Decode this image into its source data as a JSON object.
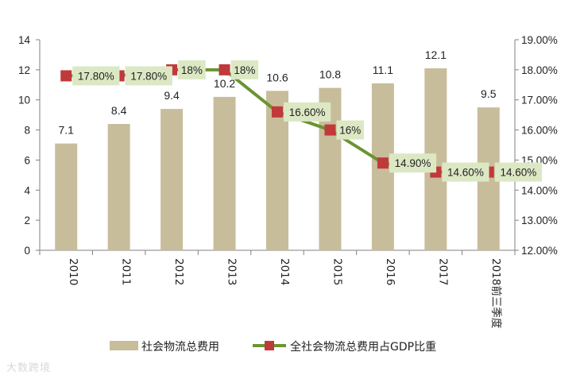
{
  "chart_data": {
    "type": "bar",
    "categories": [
      "2010",
      "2011",
      "2012",
      "2013",
      "2014",
      "2015",
      "2016",
      "2017",
      "2018前三季度"
    ],
    "series": [
      {
        "name": "社会物流总费用",
        "type": "bar",
        "axis": "left",
        "color": "#c8bd9b",
        "values": [
          7.1,
          8.4,
          9.4,
          10.2,
          10.6,
          10.8,
          11.1,
          12.1,
          9.5
        ],
        "labels": [
          "7.1",
          "8.4",
          "9.4",
          "10.2",
          "10.6",
          "10.8",
          "11.1",
          "12.1",
          "9.5"
        ]
      },
      {
        "name": "全社会物流总费用占GDP比重",
        "type": "line",
        "axis": "right",
        "line_color": "#6b9432",
        "marker_color": "#c0393b",
        "values": [
          17.8,
          17.8,
          18,
          18,
          16.6,
          16,
          14.9,
          14.6,
          14.6
        ],
        "labels": [
          "17.80%",
          "17.80%",
          "18%",
          "18%",
          "16.60%",
          "16%",
          "14.90%",
          "14.60%",
          "14.60%"
        ]
      }
    ],
    "y_left": {
      "min": 0,
      "max": 14,
      "ticks": [
        "0",
        "2",
        "4",
        "6",
        "8",
        "10",
        "12",
        "14"
      ]
    },
    "y_right": {
      "min": 12,
      "max": 19,
      "ticks": [
        "12.00%",
        "13.00%",
        "14.00%",
        "15.00%",
        "16.00%",
        "17.00%",
        "18.00%",
        "19.00%"
      ]
    },
    "label_box_color": "#dce8c4",
    "grid": false,
    "legend_position": "bottom"
  },
  "watermark": "大数跨境"
}
